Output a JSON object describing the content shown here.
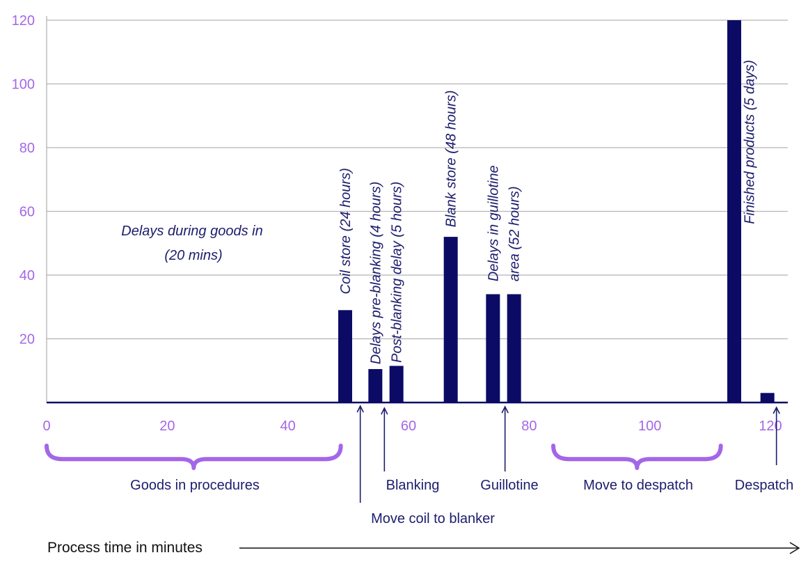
{
  "colors": {
    "bar": "#0b0b66",
    "tick": "#a466e8",
    "brace": "#a466e8",
    "text": "#1c1c6e",
    "grid": "#b3b3b3",
    "axis": "#0b0b66"
  },
  "chart_data": {
    "type": "bar",
    "title": "",
    "xlabel": "Process time in minutes",
    "ylabel": "",
    "xlim": [
      0,
      120
    ],
    "ylim": [
      0,
      120
    ],
    "x_ticks": [
      0,
      20,
      40,
      60,
      80,
      100,
      120
    ],
    "y_ticks": [
      20,
      40,
      60,
      80,
      100,
      120
    ],
    "grid": true,
    "series": [
      {
        "values": [
          {
            "x": 49.5,
            "y": 29
          },
          {
            "x": 54.5,
            "y": 10.5
          },
          {
            "x": 58,
            "y": 11.5
          },
          {
            "x": 67,
            "y": 52
          },
          {
            "x": 74,
            "y": 34
          },
          {
            "x": 77.5,
            "y": 34
          },
          {
            "x": 114,
            "y": 120
          },
          {
            "x": 119.5,
            "y": 3
          }
        ]
      }
    ],
    "annotations": [
      {
        "x": 49.5,
        "y": 34,
        "text": "Coil store (24 hours)"
      },
      {
        "x": 54.5,
        "y": 12,
        "text": "Delays pre-blanking (4 hours)"
      },
      {
        "x": 58,
        "y": 12.5,
        "text": "Post-blanking delay (5 hours)"
      },
      {
        "x": 67,
        "y": 55,
        "text": "Blank store (48 hours)"
      },
      {
        "x": 74,
        "y": 38,
        "text": "Delays in guillotine"
      },
      {
        "x": 77.5,
        "y": 38,
        "text": "area (52 hours)"
      },
      {
        "x": 116.5,
        "y": 56,
        "text": "Finished products (5 days)"
      }
    ],
    "goods_in_note": [
      "Delays during goods in",
      "(20 mins)"
    ],
    "phases": [
      {
        "label": "Goods in procedures",
        "start": 0,
        "end": 49,
        "kind": "brace"
      },
      {
        "label": "Move coil to blanker",
        "at": 52,
        "kind": "arrow"
      },
      {
        "label": "Blanking",
        "at": 56,
        "kind": "arrow"
      },
      {
        "label": "Guillotine",
        "at": 76,
        "kind": "arrow"
      },
      {
        "label": "Move to despatch",
        "start": 84,
        "end": 112,
        "kind": "brace"
      },
      {
        "label": "Despatch",
        "at": 121,
        "kind": "arrow"
      }
    ]
  }
}
